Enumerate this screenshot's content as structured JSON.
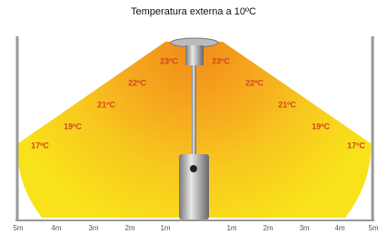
{
  "header": {
    "title": "Temperatura externa a 10ºC"
  },
  "temperatures": {
    "left": [
      "17ºC",
      "19ºC",
      "21ºC",
      "22ºC",
      "23ºC"
    ],
    "right": [
      "23ºC",
      "22ºC",
      "21ºC",
      "19ºC",
      "17ºC"
    ]
  },
  "axis": {
    "labels": [
      "5m",
      "4m",
      "3m",
      "2m",
      "1m",
      "1m",
      "2m",
      "3m",
      "4m",
      "5m"
    ]
  }
}
